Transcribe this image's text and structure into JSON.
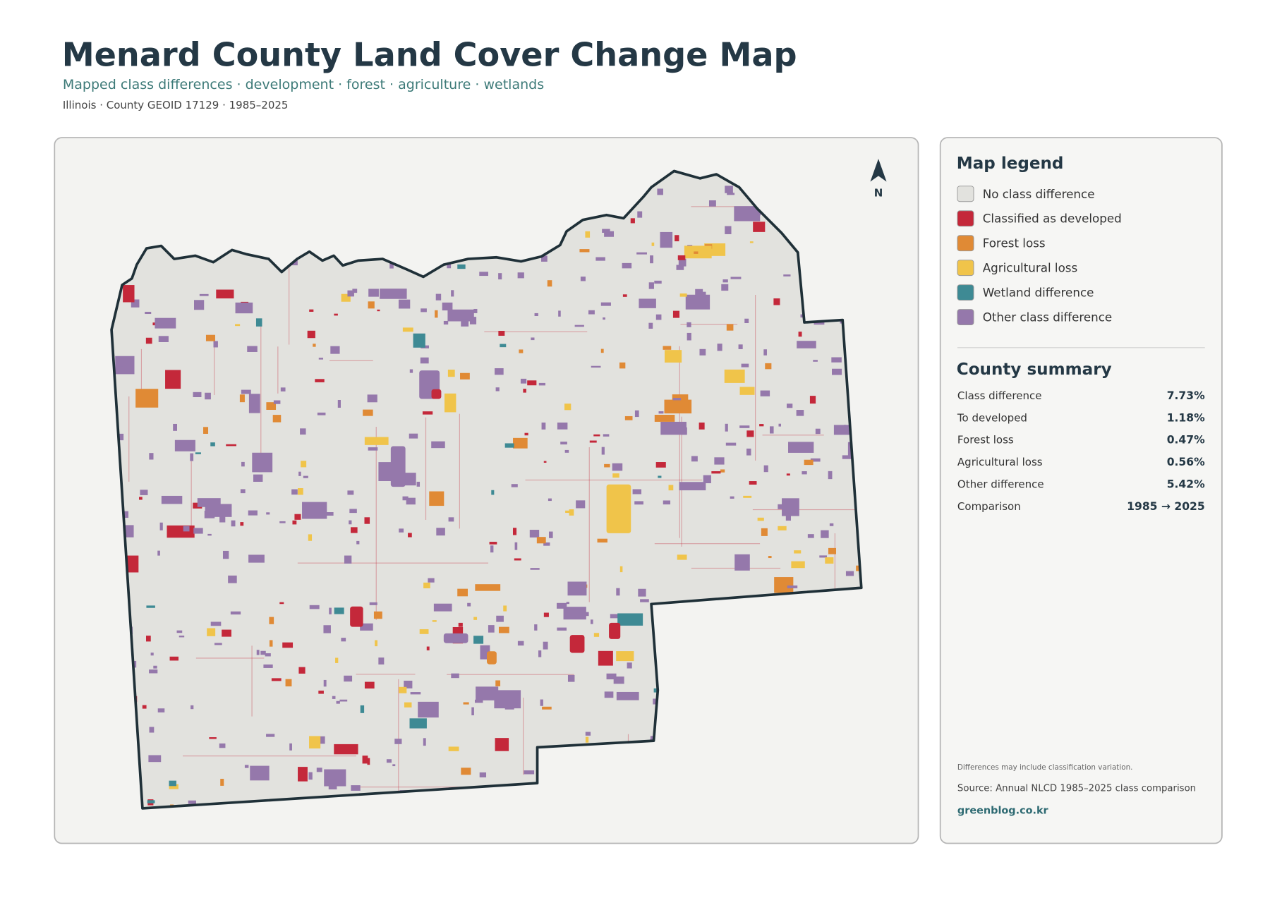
{
  "header": {
    "title": "Menard County Land Cover Change Map",
    "subtitle": "Mapped class differences · development · forest · agriculture · wetlands",
    "meta": "Illinois · County GEOID 17129 · 1985–2025"
  },
  "map": {
    "north_label": "N"
  },
  "legend": {
    "title": "Map legend",
    "items": [
      {
        "label": "No class difference",
        "color": "#e2e2de"
      },
      {
        "label": "Classified as developed",
        "color": "#c4283a"
      },
      {
        "label": "Forest loss",
        "color": "#e08a35"
      },
      {
        "label": "Agricultural loss",
        "color": "#f0c44a"
      },
      {
        "label": "Wetland difference",
        "color": "#3e8a94"
      },
      {
        "label": "Other class difference",
        "color": "#9578ab"
      }
    ]
  },
  "summary": {
    "title": "County summary",
    "rows": [
      {
        "label": "Class difference",
        "value": "7.73%"
      },
      {
        "label": "To developed",
        "value": "1.18%"
      },
      {
        "label": "Forest loss",
        "value": "0.47%"
      },
      {
        "label": "Agricultural loss",
        "value": "0.56%"
      },
      {
        "label": "Other difference",
        "value": "5.42%"
      },
      {
        "label": "Comparison",
        "value": "1985 → 2025"
      }
    ]
  },
  "footer": {
    "note": "Differences may include classification variation.",
    "source": "Source: Annual NLCD 1985–2025 class comparison",
    "site": "greenblog.co.kr"
  }
}
